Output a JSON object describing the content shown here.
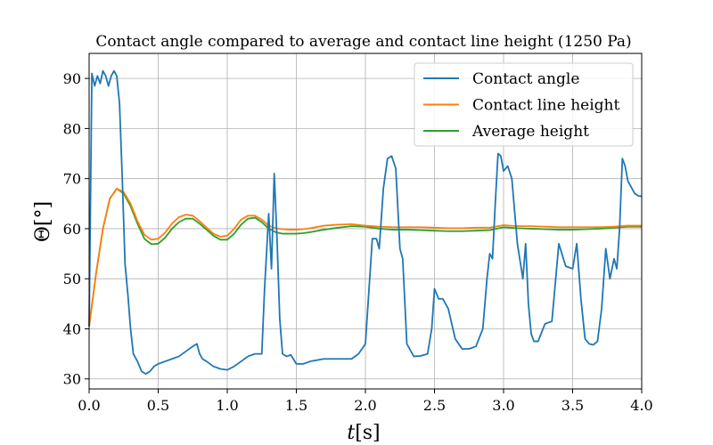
{
  "chart_data": {
    "type": "line",
    "title": "Contact angle compared to average and contact line height (1250 Pa)",
    "xlabel_var": "t",
    "xlabel_unit": "[s]",
    "ylabel_var": "Θ",
    "ylabel_unit": "[°]",
    "xlim": [
      0.0,
      4.0
    ],
    "ylim": [
      28,
      95
    ],
    "xticks": [
      0.0,
      0.5,
      1.0,
      1.5,
      2.0,
      2.5,
      3.0,
      3.5,
      4.0
    ],
    "xtick_labels": [
      "0.0",
      "0.5",
      "1.0",
      "1.5",
      "2.0",
      "2.5",
      "3.0",
      "3.5",
      "4.0"
    ],
    "yticks": [
      30,
      40,
      50,
      60,
      70,
      80,
      90
    ],
    "ytick_labels": [
      "30",
      "40",
      "50",
      "60",
      "70",
      "80",
      "90"
    ],
    "grid": true,
    "legend_position": "top-right",
    "series": [
      {
        "name": "Contact angle",
        "color": "#1f77b4",
        "x": [
          0.0,
          0.02,
          0.04,
          0.06,
          0.08,
          0.1,
          0.12,
          0.14,
          0.16,
          0.18,
          0.2,
          0.22,
          0.24,
          0.26,
          0.28,
          0.3,
          0.32,
          0.35,
          0.38,
          0.41,
          0.44,
          0.47,
          0.5,
          0.55,
          0.6,
          0.65,
          0.7,
          0.75,
          0.78,
          0.8,
          0.82,
          0.85,
          0.9,
          0.95,
          1.0,
          1.05,
          1.1,
          1.15,
          1.2,
          1.25,
          1.27,
          1.3,
          1.32,
          1.34,
          1.36,
          1.38,
          1.4,
          1.43,
          1.46,
          1.5,
          1.55,
          1.6,
          1.7,
          1.8,
          1.9,
          1.95,
          2.0,
          2.05,
          2.08,
          2.1,
          2.13,
          2.16,
          2.19,
          2.22,
          2.25,
          2.27,
          2.3,
          2.35,
          2.4,
          2.45,
          2.48,
          2.5,
          2.53,
          2.56,
          2.6,
          2.65,
          2.7,
          2.75,
          2.8,
          2.85,
          2.88,
          2.9,
          2.92,
          2.94,
          2.96,
          2.98,
          3.0,
          3.03,
          3.06,
          3.1,
          3.14,
          3.16,
          3.18,
          3.2,
          3.22,
          3.25,
          3.3,
          3.35,
          3.4,
          3.45,
          3.5,
          3.53,
          3.56,
          3.59,
          3.62,
          3.65,
          3.68,
          3.71,
          3.74,
          3.77,
          3.8,
          3.82,
          3.84,
          3.86,
          3.88,
          3.9,
          3.92,
          3.95,
          3.98,
          4.0
        ],
        "values": [
          40.5,
          91,
          88.5,
          90.5,
          89,
          91.5,
          90.5,
          88.5,
          90.5,
          91.5,
          90.5,
          85,
          70,
          53,
          47,
          40,
          35,
          33.5,
          31.5,
          31,
          31.5,
          32.5,
          33,
          33.5,
          34,
          34.5,
          35.5,
          36.5,
          37,
          35,
          34,
          33.5,
          32.5,
          32,
          31.8,
          32.5,
          33.5,
          34.5,
          35,
          35,
          48,
          63,
          52,
          71,
          58,
          42,
          35,
          34.5,
          34.8,
          33,
          33,
          33.5,
          34,
          34,
          34,
          35,
          37,
          58,
          58,
          56,
          68,
          74,
          74.5,
          72,
          56,
          54,
          37,
          34.5,
          34.6,
          35,
          40,
          48,
          46,
          46,
          44,
          38,
          36,
          36,
          36.5,
          40,
          50,
          55,
          54,
          65,
          75,
          74.5,
          71.5,
          72.5,
          70,
          57,
          50,
          57,
          45,
          39,
          37.5,
          37.5,
          41,
          41.5,
          57,
          52.5,
          52,
          57,
          46,
          38,
          37,
          36.8,
          37.5,
          44,
          56,
          50,
          54,
          52,
          60,
          74,
          72.5,
          69.5,
          68.5,
          67,
          66.5,
          66.5
        ]
      },
      {
        "name": "Contact line height",
        "color": "#ff7f0e",
        "x": [
          0.0,
          0.05,
          0.1,
          0.15,
          0.2,
          0.25,
          0.3,
          0.35,
          0.4,
          0.45,
          0.5,
          0.55,
          0.6,
          0.65,
          0.7,
          0.75,
          0.8,
          0.85,
          0.9,
          0.95,
          1.0,
          1.05,
          1.1,
          1.15,
          1.2,
          1.25,
          1.3,
          1.35,
          1.4,
          1.45,
          1.5,
          1.55,
          1.6,
          1.7,
          1.8,
          1.9,
          2.0,
          2.1,
          2.2,
          2.3,
          2.4,
          2.5,
          2.6,
          2.7,
          2.8,
          2.9,
          3.0,
          3.1,
          3.2,
          3.3,
          3.4,
          3.5,
          3.6,
          3.7,
          3.8,
          3.9,
          4.0
        ],
        "values": [
          40.5,
          51,
          60,
          66,
          68,
          67.3,
          65,
          61.5,
          58.8,
          57.8,
          58,
          59.2,
          61,
          62.3,
          62.8,
          62.6,
          61.5,
          60.2,
          59,
          58.4,
          58.6,
          60,
          61.8,
          62.6,
          62.6,
          61.8,
          60.6,
          60.1,
          59.9,
          59.8,
          59.8,
          59.9,
          60.1,
          60.6,
          60.8,
          60.9,
          60.6,
          60.4,
          60.3,
          60.3,
          60.3,
          60.2,
          60.1,
          60.1,
          60.2,
          60.2,
          60.7,
          60.5,
          60.5,
          60.4,
          60.3,
          60.3,
          60.3,
          60.3,
          60.4,
          60.6,
          60.6
        ]
      },
      {
        "name": "Average height",
        "color": "#2ca02c",
        "x": [
          0.0,
          0.05,
          0.1,
          0.15,
          0.2,
          0.25,
          0.3,
          0.35,
          0.4,
          0.45,
          0.5,
          0.55,
          0.6,
          0.65,
          0.7,
          0.75,
          0.8,
          0.85,
          0.9,
          0.95,
          1.0,
          1.05,
          1.1,
          1.15,
          1.2,
          1.25,
          1.3,
          1.35,
          1.4,
          1.45,
          1.5,
          1.55,
          1.6,
          1.7,
          1.8,
          1.9,
          2.0,
          2.1,
          2.2,
          2.3,
          2.4,
          2.5,
          2.6,
          2.7,
          2.8,
          2.9,
          3.0,
          3.1,
          3.2,
          3.3,
          3.4,
          3.5,
          3.6,
          3.7,
          3.8,
          3.9,
          4.0
        ],
        "values": [
          40.5,
          51,
          60,
          66,
          68,
          67,
          64.5,
          61,
          58,
          56.9,
          57,
          58.2,
          60,
          61.3,
          62,
          62,
          61,
          59.8,
          58.6,
          57.8,
          57.8,
          59,
          60.8,
          62,
          62.2,
          61.3,
          60,
          59.3,
          59,
          59,
          59,
          59.1,
          59.3,
          59.8,
          60.2,
          60.5,
          60.4,
          60,
          59.8,
          59.8,
          59.7,
          59.6,
          59.5,
          59.5,
          59.6,
          59.7,
          60.3,
          60.1,
          60,
          59.9,
          59.8,
          59.8,
          59.9,
          60,
          60.2,
          60.4,
          60.4
        ]
      }
    ]
  }
}
